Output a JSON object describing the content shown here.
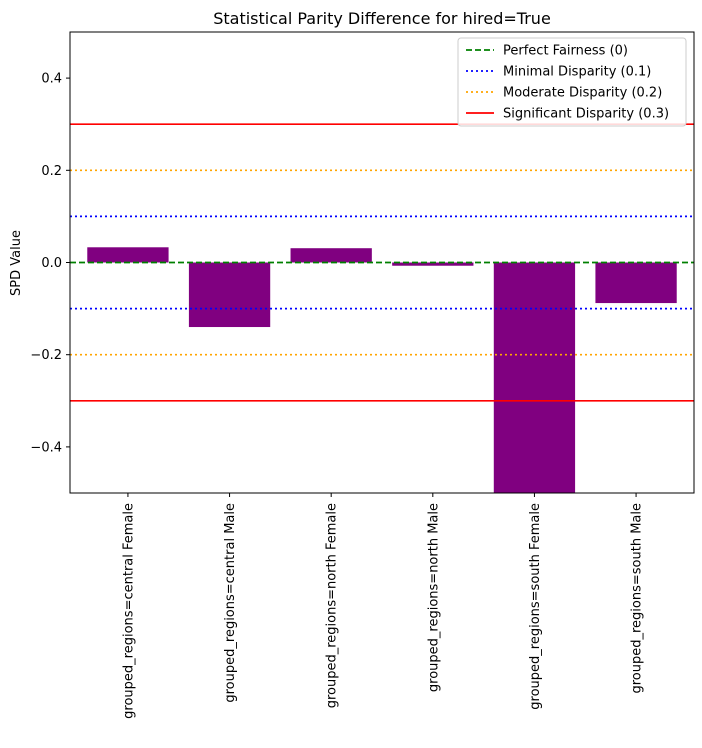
{
  "chart_data": {
    "type": "bar",
    "title": "Statistical Parity Difference for hired=True",
    "xlabel": "",
    "ylabel": "SPD Value",
    "ylim": [
      -0.5,
      0.5
    ],
    "yticks": [
      0.4,
      0.2,
      0.0,
      -0.2,
      -0.4
    ],
    "ytick_labels": [
      "0.4",
      "0.2",
      "0.0",
      "−0.2",
      "−0.4"
    ],
    "grid": false,
    "bar_color": "#800080",
    "categories": [
      "grouped_regions=central Female",
      "grouped_regions=central Male",
      "grouped_regions=north Female",
      "grouped_regions=north Male",
      "grouped_regions=south Female",
      "grouped_regions=south Male"
    ],
    "values": [
      0.033,
      -0.14,
      0.031,
      -0.007,
      -0.52,
      -0.088
    ],
    "reference_lines": [
      {
        "label": "Perfect Fairness (0)",
        "values": [
          0
        ],
        "color": "#008000",
        "style": "dashed"
      },
      {
        "label": "Minimal Disparity (0.1)",
        "values": [
          0.1,
          -0.1
        ],
        "color": "#0000ff",
        "style": "dotted"
      },
      {
        "label": "Moderate Disparity (0.2)",
        "values": [
          0.2,
          -0.2
        ],
        "color": "#ffa500",
        "style": "dotted"
      },
      {
        "label": "Significant Disparity (0.3)",
        "values": [
          0.3,
          -0.3
        ],
        "color": "#ff0000",
        "style": "solid"
      }
    ],
    "legend_position": "top-right"
  }
}
